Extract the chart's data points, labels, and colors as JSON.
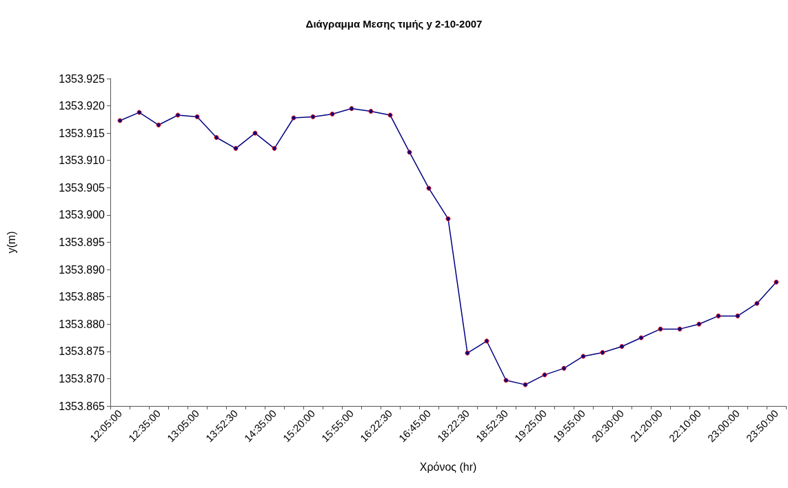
{
  "chart_data": {
    "type": "line",
    "title": "Διάγραμμα Μεσης τιμής y 2-10-2007",
    "xlabel": "Χρόνος (hr)",
    "ylabel": "y(m)",
    "categories": [
      "12:05:00",
      null,
      "12:35:00",
      null,
      "13:05:00",
      null,
      "13:52:30",
      null,
      "14:35:00",
      null,
      "15:20:00",
      null,
      "15:55:00",
      null,
      "16:22:30",
      null,
      "16:45:00",
      null,
      "18:22:30",
      null,
      "18:52:30",
      null,
      "19:25:00",
      null,
      "19:55:00",
      null,
      "20:30:00",
      null,
      "21:20:00",
      null,
      "22:10:00",
      null,
      "23:00:00",
      null,
      "23:50:00"
    ],
    "series": [
      {
        "color": "#000080",
        "values": [
          1353.9173,
          1353.9188,
          1353.9165,
          1353.9183,
          1353.918,
          1353.9142,
          1353.9122,
          1353.915,
          1353.9122,
          1353.9178,
          1353.918,
          1353.9185,
          1353.9195,
          1353.919,
          1353.9183,
          1353.9115,
          1353.9049,
          1353.8993,
          1353.8747,
          1353.8769,
          1353.8697,
          1353.8689,
          1353.8707,
          1353.8719,
          1353.8741,
          1353.8748,
          1353.8759,
          1353.8775,
          1353.8791,
          1353.8791,
          1353.88,
          1353.8815,
          1353.8815,
          1353.8838,
          1353.8877
        ]
      }
    ],
    "ylim": [
      1353.865,
      1353.925
    ],
    "yticks": [
      {
        "value": 1353.865,
        "label": "1353.865"
      },
      {
        "value": 1353.87,
        "label": "1353.870"
      },
      {
        "value": 1353.875,
        "label": "1353.875"
      },
      {
        "value": 1353.88,
        "label": "1353.880"
      },
      {
        "value": 1353.885,
        "label": "1353.885"
      },
      {
        "value": 1353.89,
        "label": "1353.890"
      },
      {
        "value": 1353.895,
        "label": "1353.895"
      },
      {
        "value": 1353.9,
        "label": "1353.900"
      },
      {
        "value": 1353.905,
        "label": "1353.905"
      },
      {
        "value": 1353.91,
        "label": "1353.910"
      },
      {
        "value": 1353.915,
        "label": "1353.915"
      },
      {
        "value": 1353.92,
        "label": "1353.920"
      },
      {
        "value": 1353.925,
        "label": "1353.925"
      }
    ],
    "grid": false,
    "marker": "circle",
    "line_style": "solid"
  }
}
